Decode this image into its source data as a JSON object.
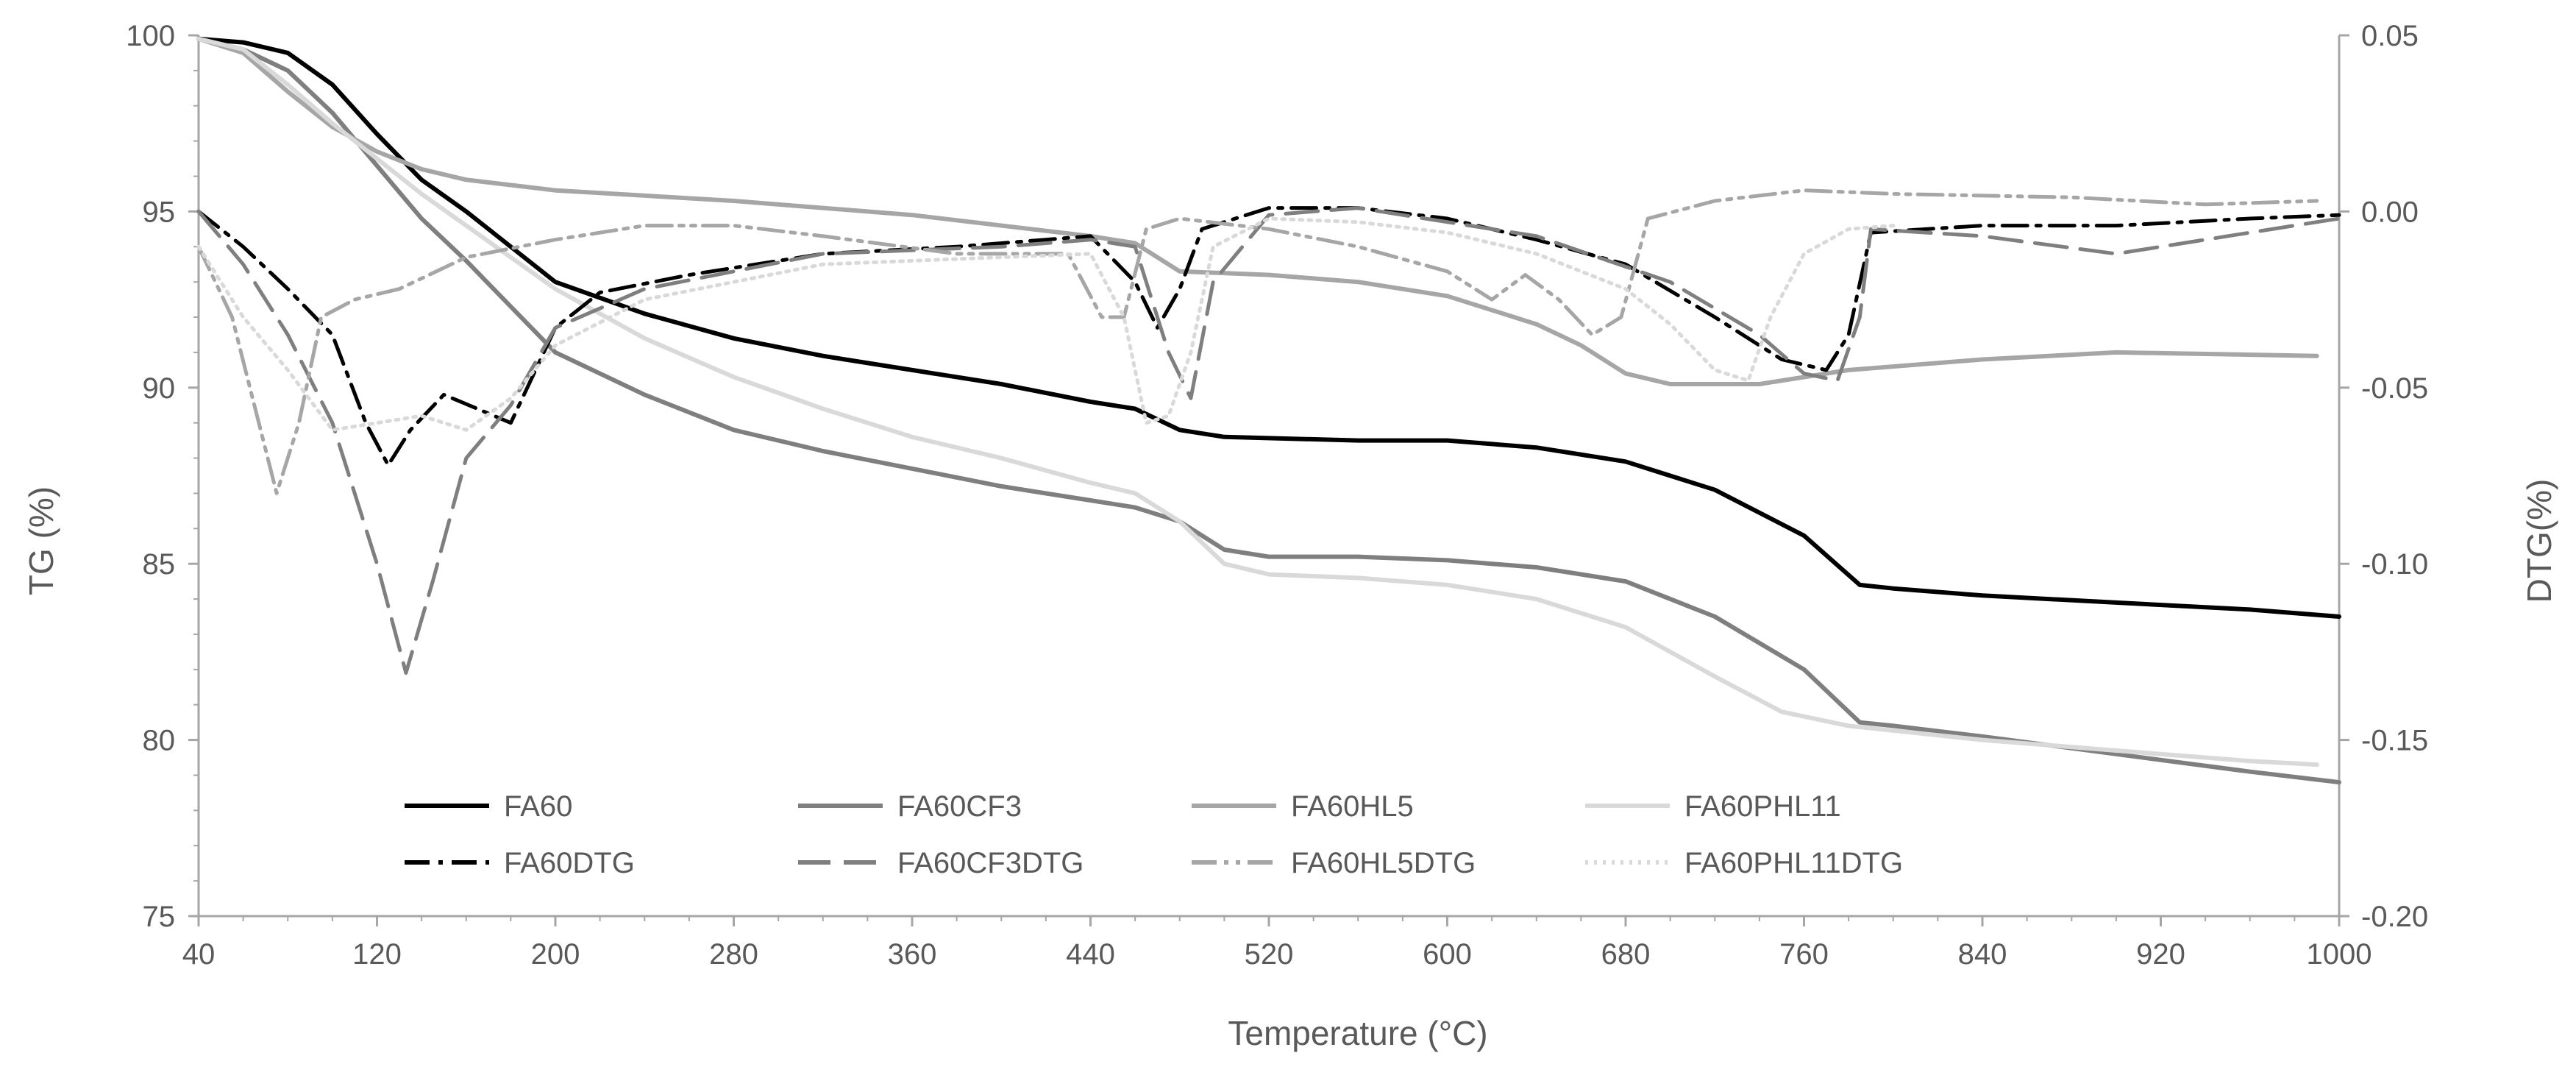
{
  "chart_data": {
    "type": "line",
    "title": "",
    "xlabel": "Temperature (°C)",
    "ylabel": "TG (%)",
    "y2label": "DTG(%)",
    "xlim": [
      40,
      1000
    ],
    "ylim": [
      75,
      100
    ],
    "y2lim": [
      -0.2,
      0.05
    ],
    "x_ticks": [
      "40",
      "120",
      "200",
      "280",
      "360",
      "440",
      "520",
      "600",
      "680",
      "760",
      "840",
      "920",
      "1000"
    ],
    "y_ticks": [
      "75",
      "80",
      "85",
      "90",
      "95",
      "100"
    ],
    "y2_ticks": [
      "-0.20",
      "-0.15",
      "-0.10",
      "-0.05",
      "0.00",
      "0.05"
    ],
    "grid": false,
    "legend_position": "bottom-left inside plot",
    "series": [
      {
        "name": "FA60",
        "axis": "left",
        "color": "#000000",
        "dash": "solid",
        "points": [
          [
            40,
            99.9
          ],
          [
            60,
            99.8
          ],
          [
            80,
            99.5
          ],
          [
            100,
            98.6
          ],
          [
            120,
            97.2
          ],
          [
            140,
            95.9
          ],
          [
            160,
            95.0
          ],
          [
            180,
            94.0
          ],
          [
            200,
            93.0
          ],
          [
            240,
            92.1
          ],
          [
            280,
            91.4
          ],
          [
            320,
            90.9
          ],
          [
            360,
            90.5
          ],
          [
            400,
            90.1
          ],
          [
            440,
            89.6
          ],
          [
            460,
            89.4
          ],
          [
            480,
            88.8
          ],
          [
            500,
            88.6
          ],
          [
            560,
            88.5
          ],
          [
            600,
            88.5
          ],
          [
            640,
            88.3
          ],
          [
            680,
            87.9
          ],
          [
            720,
            87.1
          ],
          [
            760,
            85.8
          ],
          [
            785,
            84.4
          ],
          [
            800,
            84.3
          ],
          [
            840,
            84.1
          ],
          [
            900,
            83.9
          ],
          [
            960,
            83.7
          ],
          [
            1000,
            83.5
          ]
        ]
      },
      {
        "name": "FA60CF3",
        "axis": "left",
        "color": "#7f7f7f",
        "dash": "solid",
        "points": [
          [
            40,
            99.9
          ],
          [
            60,
            99.6
          ],
          [
            80,
            99.0
          ],
          [
            100,
            97.8
          ],
          [
            120,
            96.3
          ],
          [
            140,
            94.8
          ],
          [
            160,
            93.6
          ],
          [
            180,
            92.3
          ],
          [
            200,
            91.0
          ],
          [
            240,
            89.8
          ],
          [
            280,
            88.8
          ],
          [
            320,
            88.2
          ],
          [
            360,
            87.7
          ],
          [
            400,
            87.2
          ],
          [
            440,
            86.8
          ],
          [
            460,
            86.6
          ],
          [
            480,
            86.2
          ],
          [
            500,
            85.4
          ],
          [
            520,
            85.2
          ],
          [
            560,
            85.2
          ],
          [
            600,
            85.1
          ],
          [
            640,
            84.9
          ],
          [
            680,
            84.5
          ],
          [
            720,
            83.5
          ],
          [
            760,
            82.0
          ],
          [
            785,
            80.5
          ],
          [
            800,
            80.4
          ],
          [
            840,
            80.1
          ],
          [
            900,
            79.6
          ],
          [
            960,
            79.1
          ],
          [
            1000,
            78.8
          ]
        ]
      },
      {
        "name": "FA60HL5",
        "axis": "left",
        "color": "#a6a6a6",
        "dash": "solid",
        "points": [
          [
            40,
            99.9
          ],
          [
            60,
            99.5
          ],
          [
            80,
            98.4
          ],
          [
            100,
            97.4
          ],
          [
            120,
            96.7
          ],
          [
            140,
            96.2
          ],
          [
            160,
            95.9
          ],
          [
            200,
            95.6
          ],
          [
            280,
            95.3
          ],
          [
            360,
            94.9
          ],
          [
            440,
            94.3
          ],
          [
            460,
            94.1
          ],
          [
            480,
            93.3
          ],
          [
            520,
            93.2
          ],
          [
            560,
            93.0
          ],
          [
            600,
            92.6
          ],
          [
            640,
            91.8
          ],
          [
            660,
            91.2
          ],
          [
            680,
            90.4
          ],
          [
            700,
            90.1
          ],
          [
            740,
            90.1
          ],
          [
            780,
            90.5
          ],
          [
            840,
            90.8
          ],
          [
            900,
            91.0
          ],
          [
            990,
            90.9
          ]
        ]
      },
      {
        "name": "FA60PHL11",
        "axis": "left",
        "color": "#d9d9d9",
        "dash": "solid",
        "points": [
          [
            40,
            99.9
          ],
          [
            60,
            99.6
          ],
          [
            80,
            98.6
          ],
          [
            100,
            97.5
          ],
          [
            120,
            96.5
          ],
          [
            140,
            95.5
          ],
          [
            160,
            94.6
          ],
          [
            200,
            92.8
          ],
          [
            240,
            91.4
          ],
          [
            280,
            90.3
          ],
          [
            320,
            89.4
          ],
          [
            360,
            88.6
          ],
          [
            400,
            88.0
          ],
          [
            440,
            87.3
          ],
          [
            460,
            87.0
          ],
          [
            480,
            86.2
          ],
          [
            500,
            85.0
          ],
          [
            520,
            84.7
          ],
          [
            560,
            84.6
          ],
          [
            600,
            84.4
          ],
          [
            640,
            84.0
          ],
          [
            680,
            83.2
          ],
          [
            720,
            81.8
          ],
          [
            750,
            80.8
          ],
          [
            780,
            80.4
          ],
          [
            840,
            80.0
          ],
          [
            900,
            79.7
          ],
          [
            960,
            79.4
          ],
          [
            990,
            79.3
          ]
        ]
      },
      {
        "name": "FA60DTG",
        "axis": "right",
        "color": "#000000",
        "dash": "dashdot",
        "points": [
          [
            40,
            0.0
          ],
          [
            60,
            -0.01
          ],
          [
            80,
            -0.022
          ],
          [
            100,
            -0.035
          ],
          [
            115,
            -0.06
          ],
          [
            125,
            -0.072
          ],
          [
            135,
            -0.062
          ],
          [
            150,
            -0.052
          ],
          [
            165,
            -0.056
          ],
          [
            180,
            -0.06
          ],
          [
            200,
            -0.033
          ],
          [
            220,
            -0.023
          ],
          [
            260,
            -0.018
          ],
          [
            320,
            -0.012
          ],
          [
            380,
            -0.01
          ],
          [
            440,
            -0.007
          ],
          [
            460,
            -0.02
          ],
          [
            470,
            -0.033
          ],
          [
            480,
            -0.022
          ],
          [
            490,
            -0.005
          ],
          [
            520,
            0.001
          ],
          [
            560,
            0.001
          ],
          [
            600,
            -0.002
          ],
          [
            640,
            -0.008
          ],
          [
            680,
            -0.015
          ],
          [
            720,
            -0.03
          ],
          [
            750,
            -0.042
          ],
          [
            770,
            -0.045
          ],
          [
            780,
            -0.035
          ],
          [
            790,
            -0.006
          ],
          [
            840,
            -0.004
          ],
          [
            900,
            -0.004
          ],
          [
            960,
            -0.002
          ],
          [
            1000,
            -0.001
          ]
        ]
      },
      {
        "name": "FA60CF3DTG",
        "axis": "right",
        "color": "#7f7f7f",
        "dash": "dashed",
        "points": [
          [
            40,
            0.0
          ],
          [
            60,
            -0.015
          ],
          [
            80,
            -0.035
          ],
          [
            100,
            -0.06
          ],
          [
            120,
            -0.1
          ],
          [
            133,
            -0.131
          ],
          [
            145,
            -0.105
          ],
          [
            160,
            -0.07
          ],
          [
            180,
            -0.055
          ],
          [
            200,
            -0.033
          ],
          [
            240,
            -0.022
          ],
          [
            320,
            -0.012
          ],
          [
            400,
            -0.01
          ],
          [
            440,
            -0.008
          ],
          [
            460,
            -0.01
          ],
          [
            475,
            -0.04
          ],
          [
            485,
            -0.053
          ],
          [
            495,
            -0.02
          ],
          [
            520,
            -0.001
          ],
          [
            560,
            0.001
          ],
          [
            640,
            -0.007
          ],
          [
            700,
            -0.02
          ],
          [
            740,
            -0.035
          ],
          [
            760,
            -0.046
          ],
          [
            775,
            -0.048
          ],
          [
            785,
            -0.03
          ],
          [
            790,
            -0.005
          ],
          [
            840,
            -0.007
          ],
          [
            900,
            -0.012
          ],
          [
            960,
            -0.006
          ],
          [
            1000,
            -0.002
          ]
        ]
      },
      {
        "name": "FA60HL5DTG",
        "axis": "right",
        "color": "#a6a6a6",
        "dash": "dashdotdot",
        "points": [
          [
            40,
            -0.01
          ],
          [
            55,
            -0.03
          ],
          [
            65,
            -0.055
          ],
          [
            75,
            -0.08
          ],
          [
            85,
            -0.06
          ],
          [
            95,
            -0.03
          ],
          [
            110,
            -0.025
          ],
          [
            130,
            -0.022
          ],
          [
            160,
            -0.013
          ],
          [
            200,
            -0.008
          ],
          [
            240,
            -0.004
          ],
          [
            280,
            -0.004
          ],
          [
            320,
            -0.007
          ],
          [
            380,
            -0.012
          ],
          [
            430,
            -0.012
          ],
          [
            445,
            -0.03
          ],
          [
            455,
            -0.03
          ],
          [
            465,
            -0.005
          ],
          [
            480,
            -0.002
          ],
          [
            520,
            -0.005
          ],
          [
            560,
            -0.01
          ],
          [
            600,
            -0.017
          ],
          [
            620,
            -0.025
          ],
          [
            635,
            -0.018
          ],
          [
            650,
            -0.025
          ],
          [
            665,
            -0.035
          ],
          [
            678,
            -0.03
          ],
          [
            690,
            -0.002
          ],
          [
            720,
            0.003
          ],
          [
            760,
            0.006
          ],
          [
            800,
            0.005
          ],
          [
            880,
            0.004
          ],
          [
            940,
            0.002
          ],
          [
            990,
            0.003
          ]
        ]
      },
      {
        "name": "FA60PHL11DTG",
        "axis": "right",
        "color": "#d9d9d9",
        "dash": "dotted",
        "points": [
          [
            40,
            -0.01
          ],
          [
            60,
            -0.03
          ],
          [
            80,
            -0.045
          ],
          [
            100,
            -0.062
          ],
          [
            120,
            -0.06
          ],
          [
            140,
            -0.058
          ],
          [
            160,
            -0.062
          ],
          [
            180,
            -0.053
          ],
          [
            200,
            -0.038
          ],
          [
            240,
            -0.025
          ],
          [
            280,
            -0.02
          ],
          [
            320,
            -0.015
          ],
          [
            360,
            -0.014
          ],
          [
            400,
            -0.013
          ],
          [
            440,
            -0.012
          ],
          [
            455,
            -0.03
          ],
          [
            465,
            -0.06
          ],
          [
            475,
            -0.058
          ],
          [
            485,
            -0.04
          ],
          [
            495,
            -0.01
          ],
          [
            520,
            -0.002
          ],
          [
            560,
            -0.003
          ],
          [
            600,
            -0.006
          ],
          [
            640,
            -0.012
          ],
          [
            680,
            -0.022
          ],
          [
            700,
            -0.032
          ],
          [
            720,
            -0.045
          ],
          [
            735,
            -0.048
          ],
          [
            745,
            -0.03
          ],
          [
            760,
            -0.012
          ],
          [
            780,
            -0.005
          ],
          [
            800,
            -0.004
          ]
        ]
      }
    ]
  }
}
